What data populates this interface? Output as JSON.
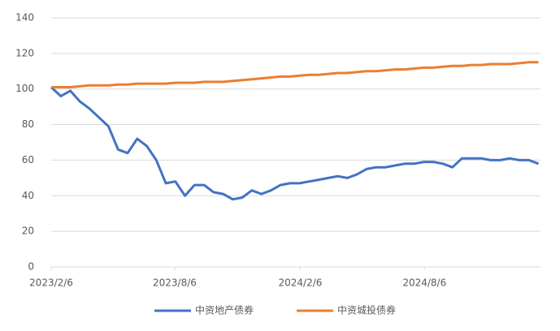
{
  "chart_data": {
    "type": "line",
    "x": [
      "2023/2/6",
      "2023/2/20",
      "2023/3/6",
      "2023/3/20",
      "2023/4/3",
      "2023/4/17",
      "2023/5/1",
      "2023/5/15",
      "2023/5/29",
      "2023/6/12",
      "2023/6/26",
      "2023/7/10",
      "2023/7/24",
      "2023/8/7",
      "2023/8/21",
      "2023/9/4",
      "2023/9/18",
      "2023/10/2",
      "2023/10/16",
      "2023/10/30",
      "2023/11/13",
      "2023/11/27",
      "2023/12/11",
      "2023/12/25",
      "2024/1/8",
      "2024/1/22",
      "2024/2/5",
      "2024/2/19",
      "2024/3/4",
      "2024/3/18",
      "2024/4/1",
      "2024/4/15",
      "2024/4/29",
      "2024/5/13",
      "2024/5/27",
      "2024/6/10",
      "2024/6/24",
      "2024/7/8",
      "2024/7/22",
      "2024/8/5",
      "2024/8/19",
      "2024/9/2",
      "2024/9/16",
      "2024/9/30",
      "2024/10/14",
      "2024/10/28",
      "2024/11/11",
      "2024/11/25",
      "2024/12/9",
      "2024/12/23",
      "2025/1/6",
      "2025/1/20"
    ],
    "series": [
      {
        "name": "中资地产债券",
        "color": "#4472c4",
        "values": [
          101,
          96,
          99,
          93,
          89,
          84,
          79,
          66,
          64,
          72,
          68,
          60,
          47,
          48,
          40,
          46,
          46,
          42,
          41,
          38,
          39,
          43,
          41,
          43,
          46,
          47,
          47,
          48,
          49,
          50,
          51,
          50,
          52,
          55,
          56,
          56,
          57,
          58,
          58,
          59,
          59,
          58,
          56,
          61,
          61,
          61,
          60,
          60,
          61,
          60,
          60,
          58
        ]
      },
      {
        "name": "中资城投债券",
        "color": "#ed7d31",
        "values": [
          101,
          101,
          101,
          101.5,
          102,
          102,
          102,
          102.5,
          102.5,
          103,
          103,
          103,
          103,
          103.5,
          103.5,
          103.5,
          104,
          104,
          104,
          104.5,
          105,
          105.5,
          106,
          106.5,
          107,
          107,
          107.5,
          108,
          108,
          108.5,
          109,
          109,
          109.5,
          110,
          110,
          110.5,
          111,
          111,
          111.5,
          112,
          112,
          112.5,
          113,
          113,
          113.5,
          113.5,
          114,
          114,
          114,
          114.5,
          115,
          115
        ]
      }
    ],
    "xlim": [
      "2023/2/6",
      "2025/1/23"
    ],
    "xticks": [
      "2023/2/6",
      "2023/8/6",
      "2024/2/6",
      "2024/8/6"
    ],
    "ylim": [
      0,
      140
    ],
    "yticks": [
      0,
      20,
      40,
      60,
      80,
      100,
      120,
      140
    ],
    "grid": true,
    "legend": "bottom"
  }
}
